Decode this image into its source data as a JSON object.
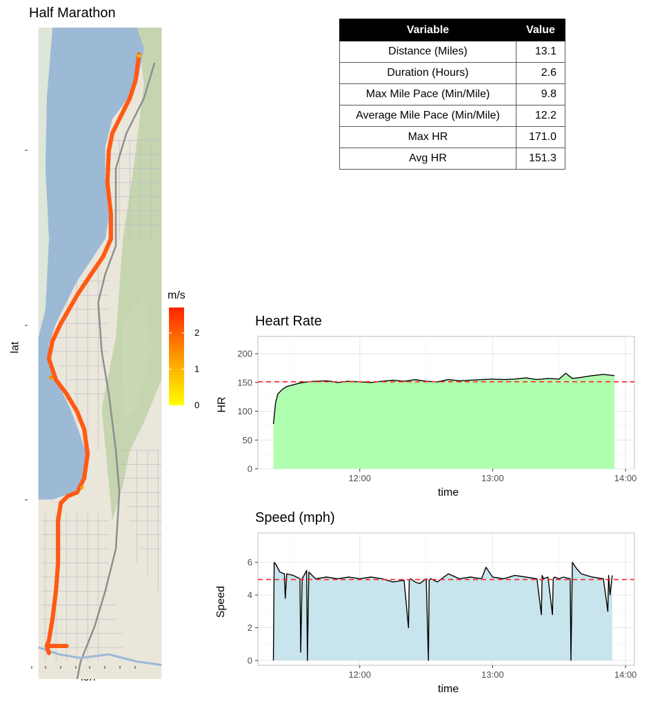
{
  "map": {
    "title": "Half Marathon",
    "xlabel": "lon",
    "ylabel": "lat",
    "legend": {
      "title": "m/s",
      "ticks": [
        "0",
        "1",
        "2"
      ],
      "tick_values": [
        0,
        1,
        2
      ],
      "range": [
        0,
        2.7
      ],
      "colors": [
        "#ffff00",
        "#ff9900",
        "#ff2200"
      ]
    },
    "route_color": "#ff5a14",
    "water_color": "#9cb9d6",
    "land_color": "#eae6da",
    "park_color": "#b8cfa0"
  },
  "stats_table": {
    "headers": [
      "Variable",
      "Value"
    ],
    "rows": [
      [
        "Distance (Miles)",
        "13.1"
      ],
      [
        "Duration (Hours)",
        "2.6"
      ],
      [
        "Max Mile Pace (Min/Mile)",
        "9.8"
      ],
      [
        "Average Mile Pace (Min/Mile)",
        "12.2"
      ],
      [
        "Max HR",
        "171.0"
      ],
      [
        "Avg HR",
        "151.3"
      ]
    ]
  },
  "chart_data": [
    {
      "type": "area",
      "title": "Heart Rate",
      "xlabel": "time",
      "ylabel": "HR",
      "xlim": [
        "11:14",
        "14:04"
      ],
      "ylim": [
        0,
        230
      ],
      "xticks": [
        "12:00",
        "13:00",
        "14:00"
      ],
      "yticks": [
        0,
        50,
        100,
        150,
        200
      ],
      "fill": "#b0ffb0",
      "reference_line": 151.3,
      "series": [
        {
          "x": [
            "11:21",
            "11:22",
            "11:23",
            "11:25",
            "11:27",
            "11:30",
            "11:33",
            "11:36",
            "11:40",
            "11:45",
            "11:50",
            "11:55",
            "12:00",
            "12:05",
            "12:10",
            "12:15",
            "12:20",
            "12:25",
            "12:30",
            "12:35",
            "12:40",
            "12:45",
            "12:50",
            "12:55",
            "13:00",
            "13:05",
            "13:10",
            "13:15",
            "13:20",
            "13:25",
            "13:30",
            "13:33",
            "13:36",
            "13:40",
            "13:45",
            "13:50",
            "13:55"
          ],
          "y": [
            78,
            115,
            130,
            138,
            143,
            146,
            149,
            151,
            152,
            153,
            150,
            152,
            151,
            150,
            152,
            154,
            152,
            155,
            152,
            151,
            155,
            153,
            154,
            155,
            156,
            155,
            156,
            158,
            155,
            157,
            156,
            166,
            157,
            159,
            162,
            164,
            162
          ]
        }
      ]
    },
    {
      "type": "area",
      "title": "Speed (mph)",
      "xlabel": "time",
      "ylabel": "Speed",
      "xlim": [
        "11:14",
        "14:04"
      ],
      "ylim": [
        -0.3,
        7.8
      ],
      "xticks": [
        "12:00",
        "13:00",
        "14:00"
      ],
      "yticks": [
        0,
        2,
        4,
        6
      ],
      "fill": "#c8e4ec",
      "reference_line": 4.95,
      "series": [
        {
          "x": [
            "11:21",
            "11:21",
            "11:22",
            "11:24",
            "11:26",
            "11:26",
            "11:27",
            "11:30",
            "11:33",
            "11:33",
            "11:34",
            "11:36",
            "11:36",
            "11:37",
            "11:40",
            "11:45",
            "11:50",
            "11:55",
            "12:00",
            "12:05",
            "12:10",
            "12:15",
            "12:20",
            "12:22",
            "12:22",
            "12:23",
            "12:25",
            "12:27",
            "12:30",
            "12:31",
            "12:31",
            "12:32",
            "12:35",
            "12:40",
            "12:45",
            "12:50",
            "12:55",
            "12:57",
            "13:00",
            "13:05",
            "13:10",
            "13:15",
            "13:20",
            "13:22",
            "13:22",
            "13:23",
            "13:25",
            "13:27",
            "13:27",
            "13:28",
            "13:30",
            "13:32",
            "13:35",
            "13:35",
            "13:36",
            "13:38",
            "13:40",
            "13:45",
            "13:50",
            "13:52",
            "13:52",
            "13:53",
            "13:54"
          ],
          "y": [
            0,
            6.0,
            5.9,
            5.4,
            5.3,
            3.8,
            5.3,
            5.2,
            5.0,
            0.5,
            5.0,
            5.5,
            0,
            5.4,
            5.0,
            5.1,
            5.0,
            5.1,
            5.0,
            5.1,
            5.0,
            4.8,
            4.9,
            2.0,
            4.9,
            5.0,
            4.8,
            4.7,
            5.0,
            0,
            4.9,
            5.0,
            4.8,
            5.3,
            5.0,
            5.1,
            5.0,
            5.7,
            5.1,
            5.0,
            5.2,
            5.1,
            5.0,
            2.8,
            5.2,
            5.0,
            5.1,
            2.8,
            5.0,
            5.1,
            5.0,
            5.1,
            5.0,
            0,
            6.0,
            5.6,
            5.3,
            5.1,
            5.0,
            3.0,
            5.2,
            4.0,
            5.2
          ]
        }
      ]
    }
  ]
}
